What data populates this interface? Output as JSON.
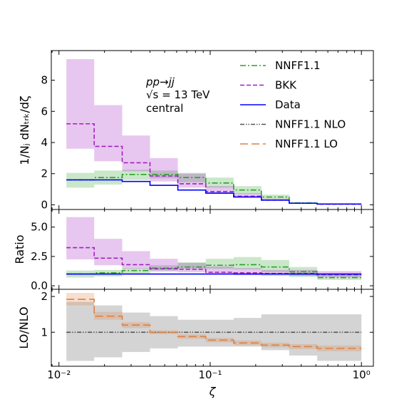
{
  "chart_data": {
    "type": "step",
    "x_bin_edges": [
      0.0112,
      0.0171,
      0.0262,
      0.04,
      0.0611,
      0.0935,
      0.143,
      0.218,
      0.333,
      0.51,
      1.0
    ],
    "annotation": [
      "pp→jj",
      "√s = 13 TeV",
      "central"
    ],
    "xlabel": "ζ",
    "x_tick_labels": [
      "10⁻²",
      "10⁻¹",
      "10⁰"
    ],
    "panels": [
      {
        "name": "top",
        "ylabel": "1/Nⱼ dNₜᵣₖ/dζ",
        "ylim": [
          -0.3,
          9.9
        ],
        "y_ticks": [
          0,
          2,
          4,
          6,
          8
        ],
        "y_tick_labels": [
          "0",
          "2",
          "4",
          "6",
          "8"
        ],
        "series": [
          {
            "name": "NNFF1.1",
            "color": "#2ca02c",
            "style": "dashdot",
            "values": [
              1.6,
              1.75,
              1.95,
              1.95,
              1.75,
              1.4,
              0.95,
              0.5,
              0.12,
              0.05
            ],
            "band_low": [
              1.1,
              1.3,
              1.6,
              1.7,
              1.45,
              1.1,
              0.7,
              0.35,
              0.08,
              0.03
            ],
            "band_high": [
              2.05,
              2.2,
              2.25,
              2.2,
              2.05,
              1.75,
              1.2,
              0.65,
              0.18,
              0.07
            ]
          },
          {
            "name": "BKK",
            "color": "#a020c0",
            "style": "dashed",
            "values": [
              5.2,
              3.75,
              2.7,
              1.85,
              1.35,
              0.85,
              0.55,
              0.3,
              0.1,
              0.04
            ],
            "band_low": [
              3.6,
              2.8,
              2.15,
              1.5,
              1.1,
              0.7,
              0.45,
              0.25,
              0.08,
              0.03
            ],
            "band_high": [
              9.35,
              6.4,
              4.45,
              3.0,
              2.0,
              1.2,
              0.75,
              0.4,
              0.14,
              0.06
            ]
          },
          {
            "name": "Data",
            "color": "#0000ff",
            "style": "solid",
            "values": [
              1.6,
              1.6,
              1.5,
              1.25,
              0.95,
              0.75,
              0.5,
              0.3,
              0.1,
              0.05
            ]
          }
        ]
      },
      {
        "name": "middle",
        "ylabel": "Ratio",
        "ylim": [
          -0.3,
          6.5
        ],
        "y_ticks": [
          0.0,
          2.5,
          5.0
        ],
        "y_tick_labels": [
          "0.0",
          "2.5",
          "5.0"
        ],
        "series": [
          {
            "name": "NNFF1.1",
            "color": "#2ca02c",
            "style": "dashdot",
            "values": [
              1.0,
              1.1,
              1.3,
              1.5,
              1.6,
              1.75,
              1.8,
              1.6,
              1.2,
              0.7
            ],
            "band_low": [
              0.7,
              0.8,
              1.05,
              1.3,
              1.45,
              1.45,
              1.4,
              1.15,
              0.75,
              0.5
            ],
            "band_high": [
              1.3,
              1.35,
              1.5,
              1.75,
              2.0,
              2.3,
              2.45,
              2.2,
              1.6,
              1.0
            ]
          },
          {
            "name": "BKK",
            "color": "#a020c0",
            "style": "dashed",
            "values": [
              3.25,
              2.35,
              1.8,
              1.45,
              1.4,
              1.15,
              1.1,
              1.05,
              1.05,
              0.95
            ],
            "band_low": [
              2.25,
              1.75,
              1.45,
              1.2,
              1.15,
              0.95,
              0.9,
              0.85,
              0.85,
              0.75
            ],
            "band_high": [
              5.85,
              4.0,
              2.95,
              2.3,
              1.95,
              1.65,
              1.5,
              1.35,
              1.35,
              1.25
            ]
          },
          {
            "name": "Data",
            "color": "#0000ff",
            "style": "solid",
            "values": [
              1.0,
              1.0,
              1.0,
              1.0,
              1.0,
              1.0,
              1.0,
              1.0,
              1.0,
              1.0
            ]
          }
        ]
      },
      {
        "name": "bottom",
        "ylabel": "LO/NLO",
        "ylim": [
          0.05,
          2.2
        ],
        "y_ticks": [
          1,
          2
        ],
        "y_tick_labels": [
          "1",
          "2"
        ],
        "series": [
          {
            "name": "NNFF1.1 NLO",
            "color": "#555555",
            "style": "dashdotdot",
            "values": [
              1.0,
              1.0,
              1.0,
              1.0,
              1.0,
              1.0,
              1.0,
              1.0,
              1.0,
              1.0
            ],
            "band_low": [
              0.2,
              0.3,
              0.45,
              0.55,
              0.6,
              0.6,
              0.6,
              0.5,
              0.35,
              0.2
            ],
            "band_high": [
              1.85,
              1.75,
              1.55,
              1.45,
              1.35,
              1.35,
              1.4,
              1.5,
              1.5,
              1.5
            ]
          },
          {
            "name": "NNFF1.1 LO",
            "color": "#dd8040",
            "style": "longdash",
            "values": [
              1.92,
              1.45,
              1.2,
              1.0,
              0.88,
              0.78,
              0.7,
              0.64,
              0.6,
              0.55
            ],
            "band_low": [
              1.75,
              1.35,
              1.12,
              0.95,
              0.82,
              0.72,
              0.64,
              0.58,
              0.53,
              0.47
            ],
            "band_high": [
              2.1,
              1.57,
              1.28,
              1.05,
              0.94,
              0.84,
              0.77,
              0.71,
              0.67,
              0.63
            ]
          }
        ]
      }
    ],
    "legend": {
      "placement": "top-right of top panel",
      "entries": [
        "NNFF1.1",
        "BKK",
        "Data",
        "NNFF1.1 NLO",
        "NNFF1.1 LO"
      ]
    },
    "colors": {
      "NNFF1.1": "#2ca02c",
      "BKK": "#a020c0",
      "Data": "#0000ff",
      "NNFF1.1 NLO": "#555555",
      "NNFF1.1 LO": "#dd8040"
    }
  }
}
